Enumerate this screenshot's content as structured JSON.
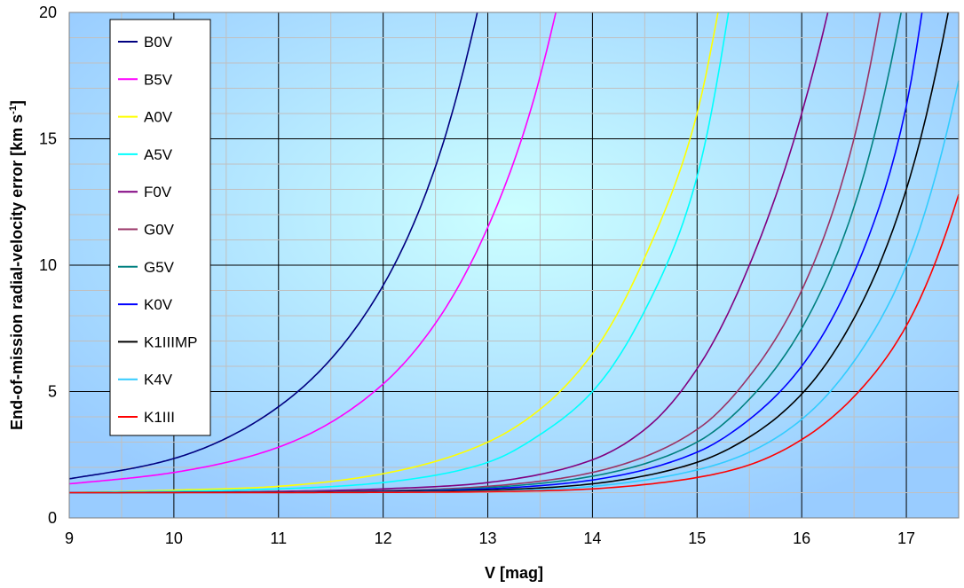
{
  "chart_data": {
    "type": "line",
    "title": "",
    "xlabel": "V [mag]",
    "ylabel_main": "End-of-mission radial-velocity error [km s",
    "ylabel_sup": "-1",
    "ylabel_close": "]",
    "xlim": [
      9,
      17.5
    ],
    "ylim": [
      0,
      20
    ],
    "x_ticks": [
      9,
      10,
      11,
      12,
      13,
      14,
      15,
      16,
      17
    ],
    "y_ticks": [
      0,
      5,
      10,
      15,
      20
    ],
    "x_tick_labels": [
      "9",
      "10",
      "11",
      "12",
      "13",
      "14",
      "15",
      "16",
      "17"
    ],
    "y_tick_labels": [
      "0",
      "5",
      "10",
      "15",
      "20"
    ],
    "grid": true,
    "legend_position": "top-left",
    "series": [
      {
        "name": "B0V",
        "color": "#000080",
        "x": [
          9,
          10,
          11,
          12,
          12.5,
          12.9
        ],
        "y": [
          1.55,
          2.35,
          4.4,
          9.2,
          13.9,
          20
        ]
      },
      {
        "name": "B5V",
        "color": "#ff00ff",
        "x": [
          9,
          10,
          11,
          12,
          12.5,
          13,
          13.4,
          13.65
        ],
        "y": [
          1.35,
          1.8,
          2.8,
          5.3,
          7.7,
          11.5,
          16.0,
          20
        ]
      },
      {
        "name": "A0V",
        "color": "#ffff00",
        "x": [
          9,
          10,
          11,
          12,
          13,
          13.5,
          14,
          14.5,
          15,
          15.2
        ],
        "y": [
          1.0,
          1.1,
          1.25,
          1.75,
          3.0,
          4.3,
          6.5,
          10.3,
          16.0,
          20
        ]
      },
      {
        "name": "A5V",
        "color": "#00ffff",
        "x": [
          9,
          11,
          12,
          13,
          13.5,
          14,
          14.5,
          15,
          15.3
        ],
        "y": [
          1.0,
          1.15,
          1.4,
          2.2,
          3.3,
          5.0,
          8.2,
          13.5,
          20
        ]
      },
      {
        "name": "F0V",
        "color": "#800080",
        "x": [
          9,
          11,
          12,
          13,
          14,
          14.5,
          15,
          15.5,
          16,
          16.25
        ],
        "y": [
          1.0,
          1.05,
          1.15,
          1.4,
          2.3,
          3.5,
          5.9,
          10.0,
          16.0,
          20
        ]
      },
      {
        "name": "G0V",
        "color": "#993366",
        "x": [
          9,
          12,
          13,
          14,
          15,
          15.5,
          16,
          16.5,
          16.75
        ],
        "y": [
          1.0,
          1.08,
          1.25,
          1.8,
          3.5,
          5.6,
          9.0,
          15.0,
          20
        ]
      },
      {
        "name": "G5V",
        "color": "#008080",
        "x": [
          9,
          12,
          13,
          14,
          15,
          15.5,
          16,
          16.5,
          16.95
        ],
        "y": [
          1.0,
          1.06,
          1.2,
          1.65,
          3.0,
          4.7,
          7.5,
          12.3,
          20
        ]
      },
      {
        "name": "K0V",
        "color": "#0000ff",
        "x": [
          9,
          12,
          13,
          14,
          15,
          15.5,
          16,
          16.5,
          17,
          17.15
        ],
        "y": [
          1.0,
          1.05,
          1.15,
          1.5,
          2.6,
          3.9,
          6.0,
          9.7,
          16.3,
          20
        ]
      },
      {
        "name": "K1IIIMP",
        "color": "#000000",
        "x": [
          9,
          12,
          13,
          14,
          15,
          15.5,
          16,
          16.5,
          17,
          17.4
        ],
        "y": [
          1.0,
          1.04,
          1.1,
          1.35,
          2.2,
          3.2,
          4.9,
          7.9,
          13.0,
          20
        ]
      },
      {
        "name": "K4V",
        "color": "#33ccff",
        "x": [
          9,
          12,
          13,
          14,
          15,
          15.5,
          16,
          16.5,
          17,
          17.5
        ],
        "y": [
          1.0,
          1.02,
          1.06,
          1.25,
          1.9,
          2.6,
          3.9,
          6.2,
          10.0,
          17.3
        ]
      },
      {
        "name": "K1III",
        "color": "#ff0000",
        "x": [
          9,
          12,
          13,
          14,
          15,
          15.5,
          16,
          16.5,
          17,
          17.5
        ],
        "y": [
          1.0,
          1.01,
          1.04,
          1.15,
          1.6,
          2.1,
          3.1,
          4.8,
          7.6,
          12.8
        ]
      }
    ]
  }
}
